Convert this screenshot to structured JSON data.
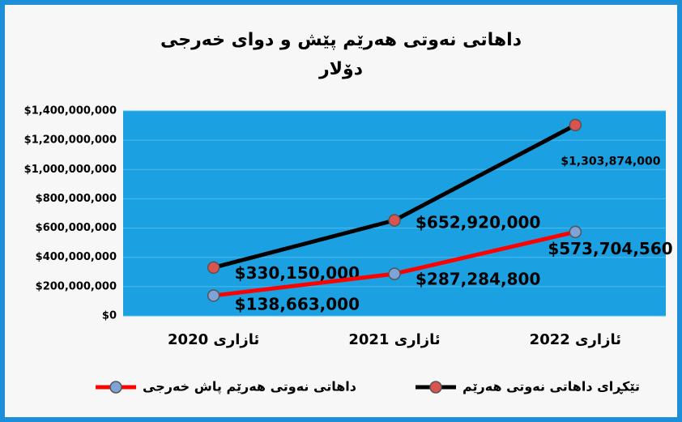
{
  "chart_data": {
    "type": "line",
    "title": "داهاتی نەوتی هەرێم پێش و دوای خەرجی",
    "subtitle": "دۆلار",
    "categories": [
      "ئازاری 2020",
      "ئازاری 2021",
      "ئازاری 2022"
    ],
    "series": [
      {
        "name": "تێکڕای داهاتی نەوتی هەرێم",
        "color": "#000000",
        "marker_color": "#d9534f",
        "values": [
          330150000,
          652920000,
          1303874000
        ],
        "value_labels": [
          "$330,150,000",
          "$652,920,000",
          "$1,303,874,000"
        ]
      },
      {
        "name": "داهاتی نەوتی هەرێم پاش خەرجی",
        "color": "#ff0000",
        "marker_color": "#7fa3d6",
        "values": [
          138663000,
          287284800,
          573704560
        ],
        "value_labels": [
          "$138,663,000",
          "$287,284,800",
          "$573,704,560"
        ]
      }
    ],
    "ylim": [
      0,
      1400000000
    ],
    "yticks": [
      {
        "value": 0,
        "label": "$0"
      },
      {
        "value": 200000000,
        "label": "$200,000,000"
      },
      {
        "value": 400000000,
        "label": "$400,000,000"
      },
      {
        "value": 600000000,
        "label": "$600,000,000"
      },
      {
        "value": 800000000,
        "label": "$800,000,000"
      },
      {
        "value": 1000000000,
        "label": "$1,000,000,000"
      },
      {
        "value": 1200000000,
        "label": "$1,200,000,000"
      },
      {
        "value": 1400000000,
        "label": "$1,400,000,000"
      }
    ],
    "grid": true,
    "plot_background": "#1ba1e2",
    "legend": "bottom"
  }
}
